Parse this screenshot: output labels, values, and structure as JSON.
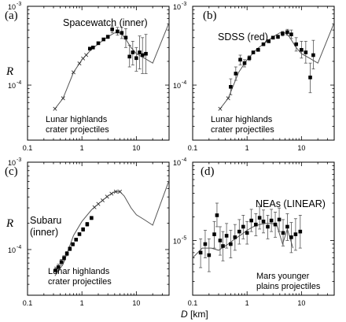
{
  "figure": {
    "xlabel_var": "D",
    "xlabel_unit": "[km]"
  },
  "chart_data": [
    {
      "type": "scatter",
      "panel": "(a)",
      "title": "Spacewatch (inner)",
      "note_lines": [
        "Lunar highlands",
        "crater projectiles"
      ],
      "ylabel": "R",
      "xscale": "log",
      "yscale": "log",
      "xlim": [
        0.1,
        40
      ],
      "ylim": [
        2e-05,
        0.001
      ],
      "x_ticks": [
        "0.1",
        "1",
        "10"
      ],
      "y_ticks": [
        {
          "mant": "10",
          "exp": "-3",
          "v": 0.001
        },
        {
          "mant": "10",
          "exp": "-4",
          "v": 0.0001
        }
      ],
      "model": {
        "x": [
          0.32,
          0.45,
          0.7,
          1.0,
          1.5,
          2.2,
          3.0,
          4.0,
          5.0,
          6.0,
          8.0,
          10.0,
          14.0,
          20.0,
          40.0
        ],
        "y": [
          5e-05,
          6.8e-05,
          0.000145,
          0.00021,
          0.000285,
          0.00035,
          0.00041,
          0.00046,
          0.00046,
          0.00041,
          0.0003,
          0.00025,
          0.00022,
          0.00019,
          0.00062
        ]
      },
      "points": [
        {
          "x": 1.4,
          "y": 0.00029,
          "lo": 0.000285,
          "hi": 0.000295
        },
        {
          "x": 1.6,
          "y": 0.0003,
          "lo": 0.000295,
          "hi": 0.000305
        },
        {
          "x": 2.0,
          "y": 0.00034,
          "lo": 0.00033,
          "hi": 0.00035
        },
        {
          "x": 2.5,
          "y": 0.00038,
          "lo": 0.00037,
          "hi": 0.00039
        },
        {
          "x": 3.0,
          "y": 0.00041,
          "lo": 0.00039,
          "hi": 0.00043
        },
        {
          "x": 3.6,
          "y": 0.00051,
          "lo": 0.00046,
          "hi": 0.00056
        },
        {
          "x": 4.5,
          "y": 0.00048,
          "lo": 0.00043,
          "hi": 0.00054
        },
        {
          "x": 5.4,
          "y": 0.00046,
          "lo": 0.00039,
          "hi": 0.00054
        },
        {
          "x": 6.4,
          "y": 0.0004,
          "lo": 0.0003,
          "hi": 0.00052
        },
        {
          "x": 7.5,
          "y": 0.00023,
          "lo": 0.00017,
          "hi": 0.00032
        },
        {
          "x": 8.6,
          "y": 0.00026,
          "lo": 0.00018,
          "hi": 0.00036
        },
        {
          "x": 10.0,
          "y": 0.00022,
          "lo": 0.00015,
          "hi": 0.0003
        },
        {
          "x": 11.5,
          "y": 0.00026,
          "lo": 0.00016,
          "hi": 0.00042
        },
        {
          "x": 13.0,
          "y": 0.00024,
          "lo": 0.00014,
          "hi": 0.0004
        },
        {
          "x": 15.0,
          "y": 0.00025,
          "lo": 0.00014,
          "hi": 0.00044
        }
      ],
      "xpoints": [
        0.32,
        0.45,
        0.7,
        0.9,
        1.05,
        1.2
      ]
    },
    {
      "type": "scatter",
      "panel": "(b)",
      "title": "SDSS (red)",
      "note_lines": [
        "Lunar highlands",
        "crater projectiles"
      ],
      "ylabel": "R",
      "xscale": "log",
      "yscale": "log",
      "xlim": [
        0.1,
        40
      ],
      "ylim": [
        2e-05,
        0.001
      ],
      "x_ticks": [
        "0.1",
        "1",
        "10"
      ],
      "y_ticks": [
        {
          "mant": "10",
          "exp": "-3",
          "v": 0.001
        },
        {
          "mant": "10",
          "exp": "-4",
          "v": 0.0001
        }
      ],
      "model": {
        "x": [
          0.32,
          0.45,
          0.7,
          1.0,
          1.5,
          2.2,
          3.0,
          4.0,
          5.0,
          6.0,
          8.0,
          10.0,
          14.0,
          20.0,
          40.0
        ],
        "y": [
          5e-05,
          6.8e-05,
          0.000145,
          0.00021,
          0.000285,
          0.00035,
          0.00041,
          0.00046,
          0.00046,
          0.00041,
          0.0003,
          0.00025,
          0.00022,
          0.00019,
          0.00062
        ]
      },
      "points": [
        {
          "x": 0.5,
          "y": 9.5e-05,
          "lo": 7.5e-05,
          "hi": 0.00012
        },
        {
          "x": 0.62,
          "y": 0.00014,
          "lo": 0.000115,
          "hi": 0.00017
        },
        {
          "x": 0.75,
          "y": 0.00021,
          "lo": 0.00018,
          "hi": 0.00024
        },
        {
          "x": 0.9,
          "y": 0.00019,
          "lo": 0.00017,
          "hi": 0.00021
        },
        {
          "x": 1.1,
          "y": 0.00022,
          "lo": 0.000205,
          "hi": 0.000235
        },
        {
          "x": 1.3,
          "y": 0.00026,
          "lo": 0.00025,
          "hi": 0.00027
        },
        {
          "x": 1.6,
          "y": 0.00028,
          "lo": 0.000272,
          "hi": 0.000288
        },
        {
          "x": 2.0,
          "y": 0.00033,
          "lo": 0.00032,
          "hi": 0.00034
        },
        {
          "x": 2.5,
          "y": 0.00036,
          "lo": 0.00035,
          "hi": 0.00037
        },
        {
          "x": 3.0,
          "y": 0.0004,
          "lo": 0.000385,
          "hi": 0.000415
        },
        {
          "x": 3.7,
          "y": 0.00041,
          "lo": 0.00039,
          "hi": 0.00043
        },
        {
          "x": 4.5,
          "y": 0.00045,
          "lo": 0.00042,
          "hi": 0.00048
        },
        {
          "x": 5.5,
          "y": 0.00047,
          "lo": 0.00043,
          "hi": 0.00051
        },
        {
          "x": 6.5,
          "y": 0.00044,
          "lo": 0.00039,
          "hi": 0.0005
        },
        {
          "x": 8.0,
          "y": 0.00033,
          "lo": 0.00027,
          "hi": 0.0004
        },
        {
          "x": 10.0,
          "y": 0.00028,
          "lo": 0.00022,
          "hi": 0.00036
        },
        {
          "x": 12.0,
          "y": 0.00026,
          "lo": 0.00019,
          "hi": 0.00036
        },
        {
          "x": 14.5,
          "y": 0.000125,
          "lo": 8e-05,
          "hi": 0.00019
        },
        {
          "x": 16.5,
          "y": 0.00024,
          "lo": 0.00016,
          "hi": 0.00037
        }
      ],
      "xpoints": [
        0.32,
        0.45
      ]
    },
    {
      "type": "scatter",
      "panel": "(c)",
      "title_lines": [
        "Subaru",
        "(inner)"
      ],
      "note_lines": [
        "Lunar highlands",
        "crater projectiles"
      ],
      "ylabel": "R",
      "xscale": "log",
      "yscale": "log",
      "xlim": [
        0.1,
        40
      ],
      "ylim": [
        3e-05,
        0.001
      ],
      "x_ticks": [
        "0.1",
        "1",
        "10"
      ],
      "y_ticks": [
        {
          "mant": "10",
          "exp": "-3",
          "v": 0.001
        },
        {
          "mant": "10",
          "exp": "-4",
          "v": 0.0001
        }
      ],
      "model": {
        "x": [
          0.32,
          0.45,
          0.7,
          1.0,
          1.5,
          2.2,
          3.0,
          4.0,
          5.0,
          6.0,
          8.0,
          10.0,
          14.0,
          20.0,
          40.0
        ],
        "y": [
          5e-05,
          6.8e-05,
          0.000145,
          0.00021,
          0.000285,
          0.00035,
          0.00041,
          0.00046,
          0.00046,
          0.00041,
          0.0003,
          0.00025,
          0.00022,
          0.00019,
          0.00062
        ]
      },
      "points": [
        {
          "x": 0.33,
          "y": 5.8e-05,
          "lo": 5.3e-05,
          "hi": 6.3e-05
        },
        {
          "x": 0.37,
          "y": 6.3e-05,
          "lo": 5.8e-05,
          "hi": 6.8e-05
        },
        {
          "x": 0.42,
          "y": 7.2e-05,
          "lo": 6.7e-05,
          "hi": 7.7e-05
        },
        {
          "x": 0.47,
          "y": 8e-05,
          "lo": 7.5e-05,
          "hi": 8.5e-05
        },
        {
          "x": 0.53,
          "y": 9e-05,
          "lo": 8.5e-05,
          "hi": 9.5e-05
        },
        {
          "x": 0.6,
          "y": 0.000102,
          "lo": 9.7e-05,
          "hi": 0.000107
        },
        {
          "x": 0.68,
          "y": 0.000115,
          "lo": 0.00011,
          "hi": 0.00012
        },
        {
          "x": 0.78,
          "y": 0.00013,
          "lo": 0.000125,
          "hi": 0.000135
        },
        {
          "x": 0.9,
          "y": 0.00015,
          "lo": 0.000145,
          "hi": 0.000155
        },
        {
          "x": 1.05,
          "y": 0.00017,
          "lo": 0.000162,
          "hi": 0.000178
        },
        {
          "x": 1.25,
          "y": 0.000195,
          "lo": 0.000185,
          "hi": 0.000205
        },
        {
          "x": 1.5,
          "y": 0.00023,
          "lo": 0.00022,
          "hi": 0.00024
        }
      ],
      "xpoints": [
        1.7,
        2.0,
        2.4,
        2.9,
        3.5,
        4.2,
        5.0
      ]
    },
    {
      "type": "scatter",
      "panel": "(d)",
      "title": "NEAs (LINEAR)",
      "note_lines": [
        "Mars  younger",
        "plains projectiles"
      ],
      "ylabel": "",
      "xscale": "log",
      "yscale": "log",
      "xlim": [
        0.1,
        40
      ],
      "ylim": [
        2e-06,
        0.0001
      ],
      "x_ticks": [
        "0.1",
        "1",
        "10"
      ],
      "y_ticks": [
        {
          "mant": "10",
          "exp": "-4",
          "v": 0.0001
        },
        {
          "mant": "10",
          "exp": "-5",
          "v": 1e-05
        }
      ],
      "model": {
        "x": [
          0.1,
          0.15,
          0.22,
          0.3,
          0.45,
          0.6,
          0.8,
          1.0,
          1.3,
          1.7,
          2.2,
          2.8,
          3.5,
          4.5,
          5.5,
          7.0
        ],
        "y": [
          6e-06,
          8e-06,
          8e-06,
          7.5e-06,
          9e-06,
          1.05e-05,
          1.2e-05,
          1.35e-05,
          1.5e-05,
          1.6e-05,
          1.65e-05,
          1.65e-05,
          1.6e-05,
          9e-06,
          1.4e-05,
          8e-06
        ]
      },
      "points": [
        {
          "x": 0.14,
          "y": 7e-06,
          "lo": 4.5e-06,
          "hi": 1.05e-05
        },
        {
          "x": 0.17,
          "y": 9e-06,
          "lo": 6e-06,
          "hi": 1.35e-05
        },
        {
          "x": 0.2,
          "y": 6.5e-06,
          "lo": 4e-06,
          "hi": 1.05e-05
        },
        {
          "x": 0.25,
          "y": 1.2e-05,
          "lo": 8e-06,
          "hi": 1.75e-05
        },
        {
          "x": 0.28,
          "y": 2.1e-05,
          "lo": 1.5e-05,
          "hi": 3e-05
        },
        {
          "x": 0.32,
          "y": 1e-05,
          "lo": 6.5e-06,
          "hi": 1.5e-05
        },
        {
          "x": 0.36,
          "y": 8.5e-06,
          "lo": 5.5e-06,
          "hi": 1.3e-05
        },
        {
          "x": 0.42,
          "y": 1.15e-05,
          "lo": 8e-06,
          "hi": 1.65e-05
        },
        {
          "x": 0.5,
          "y": 9e-06,
          "lo": 6e-06,
          "hi": 1.35e-05
        },
        {
          "x": 0.6,
          "y": 1.1e-05,
          "lo": 7.5e-06,
          "hi": 1.6e-05
        },
        {
          "x": 0.72,
          "y": 1.3e-05,
          "lo": 9e-06,
          "hi": 1.85e-05
        },
        {
          "x": 0.85,
          "y": 1.5e-05,
          "lo": 1.05e-05,
          "hi": 2.1e-05
        },
        {
          "x": 1.0,
          "y": 1.25e-05,
          "lo": 9e-06,
          "hi": 1.75e-05
        },
        {
          "x": 1.2,
          "y": 1.8e-05,
          "lo": 1.3e-05,
          "hi": 2.5e-05
        },
        {
          "x": 1.45,
          "y": 1.6e-05,
          "lo": 1.15e-05,
          "hi": 2.2e-05
        },
        {
          "x": 1.7,
          "y": 1.95e-05,
          "lo": 1.4e-05,
          "hi": 2.7e-05
        },
        {
          "x": 2.0,
          "y": 1.75e-05,
          "lo": 1.25e-05,
          "hi": 2.45e-05
        },
        {
          "x": 2.4,
          "y": 1.5e-05,
          "lo": 1.05e-05,
          "hi": 2.1e-05
        },
        {
          "x": 2.8,
          "y": 1.8e-05,
          "lo": 1.3e-05,
          "hi": 2.5e-05
        },
        {
          "x": 3.3,
          "y": 1.6e-05,
          "lo": 1.1e-05,
          "hi": 2.3e-05
        },
        {
          "x": 3.9,
          "y": 1.85e-05,
          "lo": 1.3e-05,
          "hi": 2.6e-05
        },
        {
          "x": 4.6,
          "y": 1.25e-05,
          "lo": 8.5e-06,
          "hi": 1.85e-05
        },
        {
          "x": 5.5,
          "y": 1.5e-05,
          "lo": 1e-05,
          "hi": 2.2e-05
        },
        {
          "x": 6.5,
          "y": 1.1e-05,
          "lo": 7e-06,
          "hi": 1.7e-05
        },
        {
          "x": 7.8,
          "y": 1.2e-05,
          "lo": 7.5e-06,
          "hi": 1.9e-05
        },
        {
          "x": 9.5,
          "y": 1.3e-05,
          "lo": 8e-06,
          "hi": 2.1e-05
        }
      ],
      "xpoints": []
    }
  ]
}
